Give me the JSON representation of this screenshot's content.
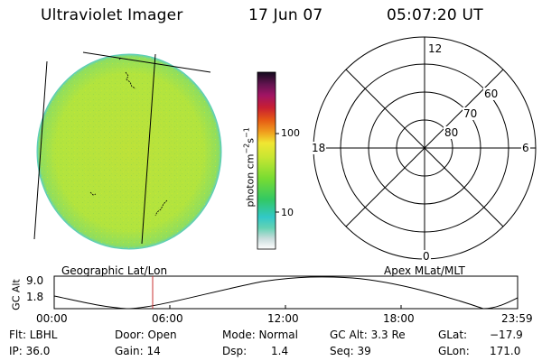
{
  "header": {
    "instrument": "Ultraviolet Imager",
    "date": "17 Jun 07",
    "time": "05:07:20 UT"
  },
  "colorbar": {
    "unit_text": "photon cm",
    "unit_exp1": "−2",
    "unit_mid": "s",
    "unit_exp2": "−1",
    "tick_100": "100",
    "tick_10": "10"
  },
  "polar_plot": {
    "mlt_12": "12",
    "mlt_18": "18",
    "mlt_6": "6",
    "mlt_0": "0",
    "lat_60": "60",
    "lat_70": "70",
    "lat_80": "80"
  },
  "altitude_plot": {
    "ylabel": "GC Alt",
    "ytick_top": "9.0",
    "ytick_bottom": "1.8",
    "left_caption": "Geographic Lat/Lon",
    "right_caption": "Apex MLat/MLT",
    "xticks": [
      "00:00",
      "06:00",
      "12:00",
      "18:00",
      "23:59"
    ]
  },
  "info": {
    "filter": "Flt: LBHL",
    "ip": "IP: 36.0",
    "door": "Door: Open",
    "gain": "Gain: 14",
    "mode": "Mode: Normal",
    "dsp_label": "Dsp:",
    "dsp_value": "1.4",
    "gc_alt": "GC Alt: 3.3 Re",
    "seq": "Seq: 39",
    "glat_label": "GLat:",
    "glat_value": "−17.9",
    "glon_label": "GLon:",
    "glon_value": "171.0"
  },
  "colors": {
    "disk_fill": "#b4e63c",
    "disk_edge": "#64d2b4",
    "marker_line": "#c83232"
  }
}
